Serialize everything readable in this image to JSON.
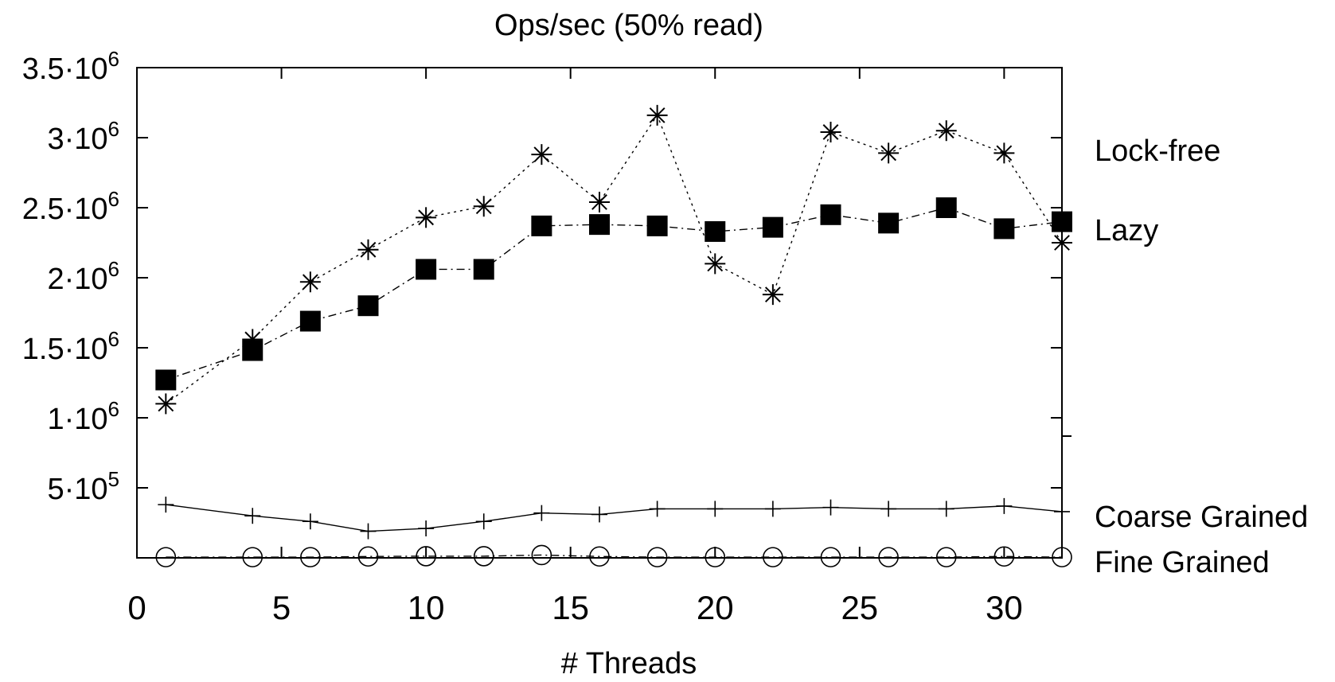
{
  "chart_data": {
    "type": "line",
    "title": "Ops/sec (50% read)",
    "xlabel": "# Threads",
    "ylabel": "",
    "xlim": [
      0,
      32
    ],
    "ylim": [
      0,
      3500000
    ],
    "x_ticks": [
      0,
      5,
      10,
      15,
      20,
      25,
      30
    ],
    "x_tick_labels": [
      "0",
      "5",
      "10",
      "15",
      "20",
      "25",
      "30"
    ],
    "y_ticks": [
      {
        "value": 500000,
        "base": "5·10",
        "exp": "5"
      },
      {
        "value": 1000000,
        "base": "1·10",
        "exp": "6"
      },
      {
        "value": 1500000,
        "base": "1.5·10",
        "exp": "6"
      },
      {
        "value": 2000000,
        "base": "2·10",
        "exp": "6"
      },
      {
        "value": 2500000,
        "base": "2.5·10",
        "exp": "6"
      },
      {
        "value": 3000000,
        "base": "3·10",
        "exp": "6"
      },
      {
        "value": 3500000,
        "base": "3.5·10",
        "exp": "6"
      }
    ],
    "grid": false,
    "legend": "right",
    "series": [
      {
        "name": "Lock-free",
        "marker": "asterisk",
        "line": "dotted",
        "x": [
          1,
          4,
          6,
          8,
          10,
          12,
          14,
          16,
          18,
          20,
          22,
          24,
          26,
          28,
          30,
          32
        ],
        "values": [
          1100000,
          1560000,
          1970000,
          2200000,
          2430000,
          2510000,
          2880000,
          2540000,
          3160000,
          2100000,
          1880000,
          3040000,
          2890000,
          3050000,
          2890000,
          2250000
        ]
      },
      {
        "name": "Lazy",
        "marker": "filled-square",
        "line": "dash-dot",
        "x": [
          1,
          4,
          6,
          8,
          10,
          12,
          14,
          16,
          18,
          20,
          22,
          24,
          26,
          28,
          30,
          32
        ],
        "values": [
          1270000,
          1480000,
          1690000,
          1800000,
          2060000,
          2060000,
          2370000,
          2380000,
          2370000,
          2330000,
          2360000,
          2450000,
          2390000,
          2500000,
          2350000,
          2400000
        ]
      },
      {
        "name": "Coarse Grained",
        "marker": "plus",
        "line": "solid",
        "x": [
          1,
          4,
          6,
          8,
          10,
          12,
          14,
          16,
          18,
          20,
          22,
          24,
          26,
          28,
          30,
          32
        ],
        "values": [
          380000,
          300000,
          260000,
          190000,
          210000,
          260000,
          320000,
          310000,
          350000,
          350000,
          350000,
          360000,
          350000,
          350000,
          370000,
          330000
        ]
      },
      {
        "name": "Fine Grained",
        "marker": "open-circle",
        "line": "dash-dot",
        "x": [
          1,
          4,
          6,
          8,
          10,
          12,
          14,
          16,
          18,
          20,
          22,
          24,
          26,
          28,
          30,
          32
        ],
        "values": [
          5000,
          5000,
          5000,
          10000,
          12000,
          12000,
          20000,
          10000,
          5000,
          5000,
          5000,
          5000,
          5000,
          5000,
          10000,
          5000
        ]
      }
    ]
  }
}
